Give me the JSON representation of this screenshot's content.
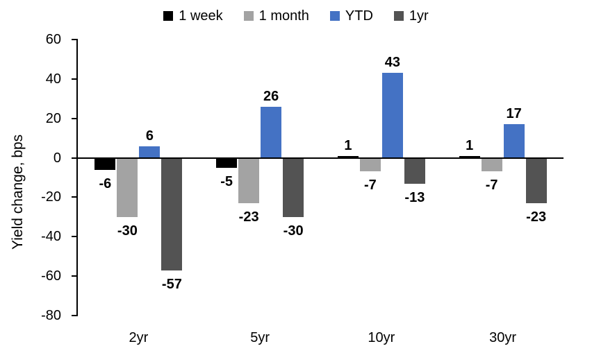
{
  "chart_data": {
    "type": "bar",
    "ylabel": "Yield change, bps",
    "categories": [
      "2yr",
      "5yr",
      "10yr",
      "30yr"
    ],
    "series": [
      {
        "name": "1 week",
        "color": "#000000",
        "values": [
          -6,
          -5,
          1,
          1
        ]
      },
      {
        "name": "1 month",
        "color": "#A3A3A3",
        "values": [
          -30,
          -23,
          -7,
          -7
        ]
      },
      {
        "name": "YTD",
        "color": "#4472C4",
        "values": [
          6,
          26,
          43,
          17
        ]
      },
      {
        "name": "1yr",
        "color": "#535353",
        "values": [
          -57,
          -30,
          -13,
          -23
        ]
      }
    ],
    "ylim": [
      -80,
      60
    ],
    "yticks": [
      60,
      40,
      20,
      0,
      -20,
      -40,
      -60,
      -80
    ],
    "legend_position": "top",
    "grid": false,
    "data_labels": true,
    "axis_color": "#000000",
    "background": "#FFFFFF"
  }
}
